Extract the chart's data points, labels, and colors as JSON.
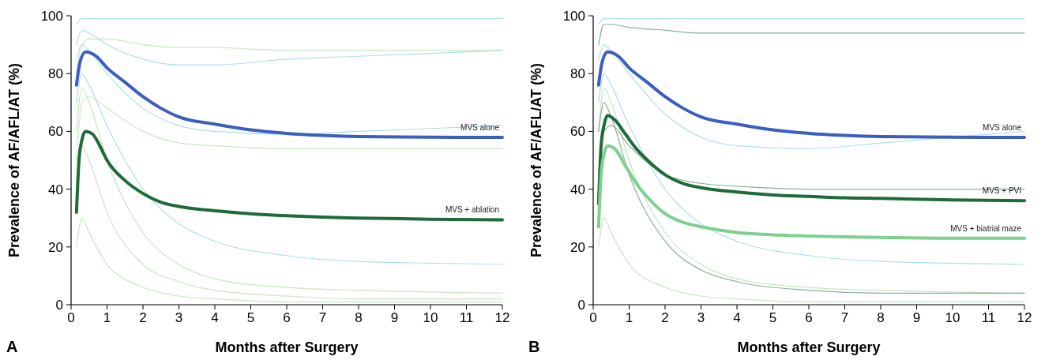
{
  "chart_data": [
    {
      "type": "line",
      "xlabel": "Months after Surgery",
      "ylabel": "Prevalence of AF/AFL/AT (%)",
      "xlim": [
        0,
        12
      ],
      "ylim": [
        0,
        100
      ],
      "xticks": [
        0,
        1,
        2,
        3,
        4,
        5,
        6,
        7,
        8,
        9,
        10,
        11,
        12
      ],
      "yticks": [
        0,
        20,
        40,
        60,
        80,
        100
      ],
      "annotations": [
        "A"
      ],
      "series": [
        {
          "color": "#9ad7e3",
          "x": [
            0.15,
            0.3,
            0.5,
            1,
            2,
            3,
            4,
            6,
            8,
            12
          ],
          "values": [
            97,
            99,
            99,
            99,
            99,
            99,
            99,
            99,
            99,
            99
          ]
        },
        {
          "color": "#9ad7e3",
          "x": [
            0.15,
            0.3,
            0.5,
            1,
            2,
            3,
            4,
            6,
            8,
            12
          ],
          "values": [
            90,
            95,
            94,
            90,
            85,
            83,
            83,
            85,
            86,
            88
          ]
        },
        {
          "color": "#9ad7e3",
          "x": [
            0.15,
            0.3,
            0.5,
            1,
            2,
            3,
            4,
            6,
            8,
            12
          ],
          "values": [
            85,
            90,
            88,
            80,
            68,
            62,
            60,
            59,
            60,
            62
          ]
        },
        {
          "color": "#9ad7e3",
          "x": [
            0.15,
            0.3,
            0.5,
            1,
            2,
            3,
            4,
            6,
            8,
            12
          ],
          "values": [
            70,
            80,
            76,
            62,
            40,
            28,
            22,
            17,
            15,
            14
          ]
        },
        {
          "color": "#b9e0b3",
          "x": [
            0.15,
            0.3,
            0.5,
            1,
            2,
            3,
            4,
            6,
            8,
            12
          ],
          "values": [
            60,
            75,
            70,
            50,
            25,
            14,
            9,
            6,
            5,
            4
          ]
        },
        {
          "color": "#b9e0b3",
          "x": [
            0.15,
            0.3,
            0.5,
            1,
            2,
            3,
            4,
            6,
            8,
            12
          ],
          "values": [
            40,
            55,
            50,
            32,
            14,
            8,
            5,
            3,
            2,
            2
          ]
        },
        {
          "color": "#b9e0b3",
          "x": [
            0.15,
            0.3,
            0.5,
            1,
            2,
            3,
            4,
            6,
            8,
            12
          ],
          "values": [
            80,
            90,
            92,
            92,
            90,
            89,
            89,
            88,
            88,
            88
          ]
        },
        {
          "color": "#b9e0b3",
          "x": [
            0.15,
            0.3,
            0.5,
            1,
            2,
            3,
            4,
            6,
            8,
            12
          ],
          "values": [
            20,
            30,
            25,
            14,
            6,
            3,
            2,
            1,
            1,
            1
          ]
        },
        {
          "color": "#b9e0b3",
          "x": [
            0.15,
            0.3,
            0.5,
            1,
            2,
            3,
            4,
            6,
            8,
            12
          ],
          "values": [
            50,
            70,
            72,
            68,
            60,
            56,
            55,
            54,
            54,
            54
          ]
        },
        {
          "name": "MVS alone",
          "color": "#3b5fbf",
          "x": [
            0.15,
            0.25,
            0.4,
            0.7,
            1,
            1.5,
            2,
            2.5,
            3,
            4,
            5,
            6,
            7,
            8,
            10,
            12
          ],
          "values": [
            76,
            84,
            87.5,
            86,
            82,
            77,
            72,
            68,
            65,
            62.5,
            60.5,
            59.3,
            58.6,
            58.2,
            58,
            57.9
          ]
        },
        {
          "name": "MVS + ablation",
          "color": "#1e6b3a",
          "x": [
            0.15,
            0.22,
            0.3,
            0.4,
            0.6,
            0.8,
            1,
            1.5,
            2,
            2.5,
            3,
            4,
            5,
            6,
            7,
            8,
            10,
            12
          ],
          "values": [
            32,
            50,
            57,
            60,
            59,
            55,
            50,
            43,
            38.5,
            35.5,
            34,
            32.5,
            31.5,
            30.8,
            30.3,
            30,
            29.6,
            29.4
          ]
        }
      ]
    },
    {
      "type": "line",
      "xlabel": "Months after Surgery",
      "ylabel": "Prevalence of AF/AFL/AT (%)",
      "xlim": [
        0,
        12
      ],
      "ylim": [
        0,
        100
      ],
      "xticks": [
        0,
        1,
        2,
        3,
        4,
        5,
        6,
        7,
        8,
        9,
        10,
        11,
        12
      ],
      "yticks": [
        0,
        20,
        40,
        60,
        80,
        100
      ],
      "annotations": [
        "B"
      ],
      "series": [
        {
          "color": "#9ad7e3",
          "x": [
            0.15,
            0.3,
            0.5,
            1,
            2,
            3,
            4,
            6,
            8,
            12
          ],
          "values": [
            97,
            99,
            99,
            99,
            99,
            99,
            99,
            99,
            99,
            99
          ]
        },
        {
          "color": "#9ad7e3",
          "x": [
            0.15,
            0.3,
            0.5,
            1,
            2,
            3,
            4,
            6,
            8,
            12
          ],
          "values": [
            85,
            90,
            88,
            80,
            66,
            58,
            55,
            54,
            56,
            60
          ]
        },
        {
          "color": "#9ad7e3",
          "x": [
            0.15,
            0.3,
            0.5,
            1,
            2,
            3,
            4,
            6,
            8,
            12
          ],
          "values": [
            70,
            80,
            76,
            62,
            40,
            28,
            22,
            17,
            15,
            14
          ]
        },
        {
          "color": "#b9e0b3",
          "x": [
            0.15,
            0.3,
            0.5,
            1,
            2,
            3,
            4,
            6,
            8,
            12
          ],
          "values": [
            60,
            75,
            70,
            50,
            25,
            14,
            9,
            6,
            5,
            4
          ]
        },
        {
          "color": "#b9e0b3",
          "x": [
            0.15,
            0.3,
            0.5,
            1,
            2,
            3,
            4,
            6,
            8,
            12
          ],
          "values": [
            20,
            30,
            25,
            14,
            6,
            3,
            2,
            1,
            1,
            1
          ]
        },
        {
          "color": "#6f9a7d",
          "x": [
            0.15,
            0.3,
            0.5,
            1,
            2,
            3,
            4,
            6,
            8,
            12
          ],
          "values": [
            60,
            70,
            65,
            45,
            22,
            12,
            8,
            5,
            4,
            4
          ]
        },
        {
          "color": "#6f9a7d",
          "x": [
            0.15,
            0.3,
            0.5,
            1,
            2,
            3,
            4,
            6,
            8,
            12
          ],
          "values": [
            90,
            97,
            97,
            96,
            95,
            94,
            94,
            94,
            94,
            94
          ]
        },
        {
          "color": "#6f9a7d",
          "x": [
            0.15,
            0.3,
            0.5,
            1,
            2,
            3,
            4,
            6,
            8,
            12
          ],
          "values": [
            45,
            60,
            62,
            55,
            45,
            42,
            41,
            40,
            40,
            40
          ]
        },
        {
          "name": "MVS alone",
          "color": "#3b5fbf",
          "x": [
            0.15,
            0.25,
            0.4,
            0.7,
            1,
            1.5,
            2,
            2.5,
            3,
            4,
            5,
            6,
            7,
            8,
            10,
            12
          ],
          "values": [
            76,
            84,
            87.5,
            86,
            82,
            77,
            72,
            68,
            65,
            62.5,
            60.5,
            59.3,
            58.6,
            58.2,
            58,
            57.9
          ]
        },
        {
          "name": "MVS + PVI",
          "color": "#1e6b3a",
          "x": [
            0.15,
            0.22,
            0.3,
            0.4,
            0.6,
            0.9,
            1.2,
            1.6,
            2,
            2.5,
            3,
            4,
            5,
            6,
            7,
            8,
            10,
            12
          ],
          "values": [
            35,
            55,
            62,
            65.5,
            64,
            59,
            54,
            49,
            45,
            42,
            40.5,
            39,
            38,
            37.5,
            37,
            36.8,
            36.3,
            36
          ]
        },
        {
          "name": "MVS + biatrial maze",
          "color": "#7fcf8f",
          "x": [
            0.15,
            0.22,
            0.3,
            0.4,
            0.6,
            0.9,
            1.2,
            1.6,
            2,
            2.5,
            3,
            4,
            5,
            6,
            7,
            8,
            10,
            12
          ],
          "values": [
            27,
            45,
            52,
            55,
            54,
            48,
            42,
            36,
            31.5,
            28.5,
            27,
            25,
            24.2,
            23.8,
            23.5,
            23.3,
            23,
            23
          ]
        }
      ]
    }
  ]
}
